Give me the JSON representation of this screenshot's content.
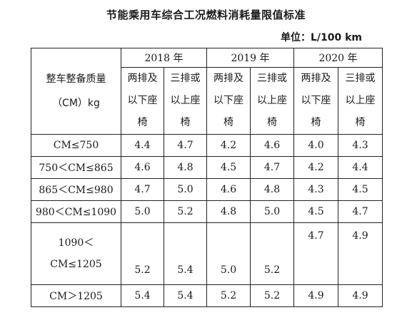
{
  "title": "节能乘用车综合工况燃料消耗量限值标准",
  "unit": "单位：L/100 km",
  "header": {
    "mass_label_lines": [
      "整车整备质量",
      "（CM）kg"
    ],
    "years": [
      "2018 年",
      "2019 年",
      "2020 年"
    ],
    "sub_a_lines": [
      "两排及",
      "以下座",
      "椅"
    ],
    "sub_b_lines": [
      "三排或",
      "以上座",
      "椅"
    ]
  },
  "rows": [
    {
      "label": "CM≤750",
      "values": [
        "4.4",
        "4.7",
        "4.2",
        "4.6",
        "4.0",
        "4.3"
      ]
    },
    {
      "label": "750＜CM≤865",
      "values": [
        "4.6",
        "4.8",
        "4.5",
        "4.7",
        "4.2",
        "4.4"
      ]
    },
    {
      "label": "865＜CM≤980",
      "values": [
        "4.7",
        "5.0",
        "4.6",
        "4.8",
        "4.3",
        "4.5"
      ]
    },
    {
      "label": "980＜CM≤1090",
      "values": [
        "5.0",
        "5.2",
        "4.8",
        "5.0",
        "4.5",
        "4.7"
      ]
    },
    {
      "label_lines": [
        "1090＜",
        "CM≤1205"
      ],
      "values": [
        "5.2",
        "5.4",
        "5.0",
        "5.2",
        "4.7",
        "4.9"
      ]
    },
    {
      "label": "CM＞1205",
      "values": [
        "5.4",
        "5.4",
        "5.2",
        "5.2",
        "4.9",
        "4.9"
      ]
    }
  ]
}
